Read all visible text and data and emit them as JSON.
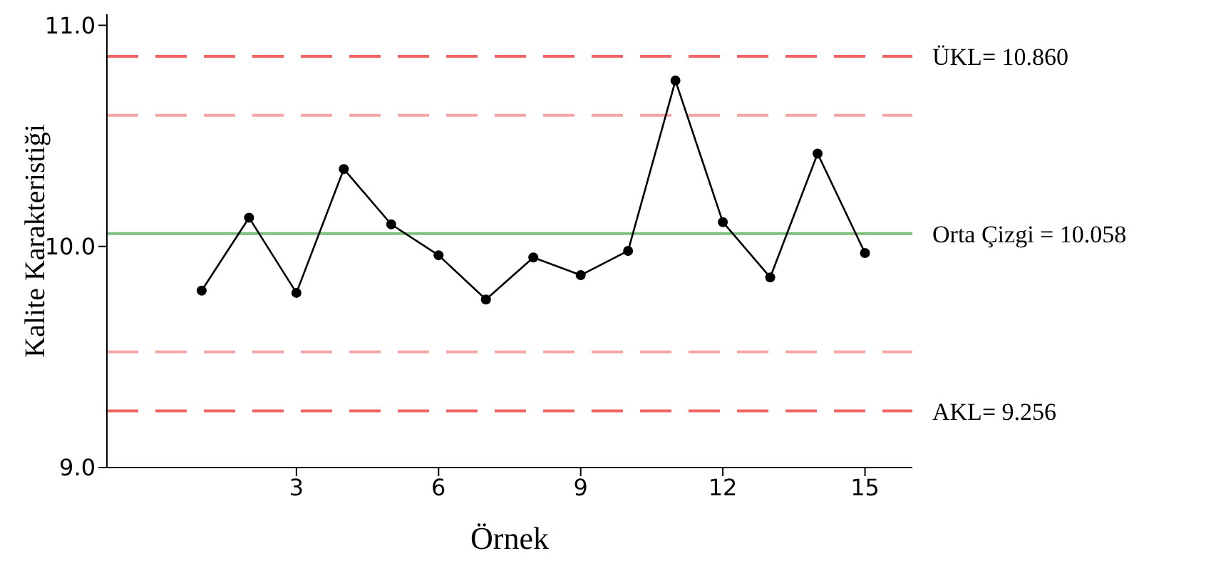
{
  "chart_data": {
    "type": "line",
    "xlabel": "Örnek",
    "ylabel": "Kalite Karakteristiği",
    "x": [
      1,
      2,
      3,
      4,
      5,
      6,
      7,
      8,
      9,
      10,
      11,
      12,
      13,
      14,
      15
    ],
    "series": [
      {
        "color": "#000000",
        "values": [
          9.8,
          10.13,
          9.79,
          10.35,
          10.1,
          9.96,
          9.76,
          9.95,
          9.87,
          9.98,
          10.75,
          10.11,
          9.86,
          10.42,
          9.97
        ]
      }
    ],
    "xlim": [
      -1,
      16
    ],
    "xticks": [
      3,
      6,
      9,
      12,
      15
    ],
    "ylim": [
      9,
      11.05
    ],
    "yticks": [
      {
        "value": 9,
        "label": "9.0"
      },
      {
        "value": 10,
        "label": "10.0"
      },
      {
        "value": 11,
        "label": "11.0"
      }
    ],
    "ref_lines": [
      {
        "axis": "y",
        "value": 10.86,
        "label": "ÜKL= 10.860",
        "color": "#f06464",
        "line_style": "dashed"
      },
      {
        "axis": "y",
        "value": 10.593,
        "color": "#f6a5a5",
        "line_style": "dashed"
      },
      {
        "axis": "y",
        "value": 10.058,
        "label": "Orta Çizgi = 10.058",
        "color": "#7dc07d",
        "line_style": "solid"
      },
      {
        "axis": "y",
        "value": 9.523,
        "color": "#f6a5a5",
        "line_style": "dashed"
      },
      {
        "axis": "y",
        "value": 9.256,
        "label": "AKL= 9.256",
        "color": "#f06464",
        "line_style": "dashed"
      }
    ],
    "marker": "circle",
    "line_style": "solid"
  }
}
